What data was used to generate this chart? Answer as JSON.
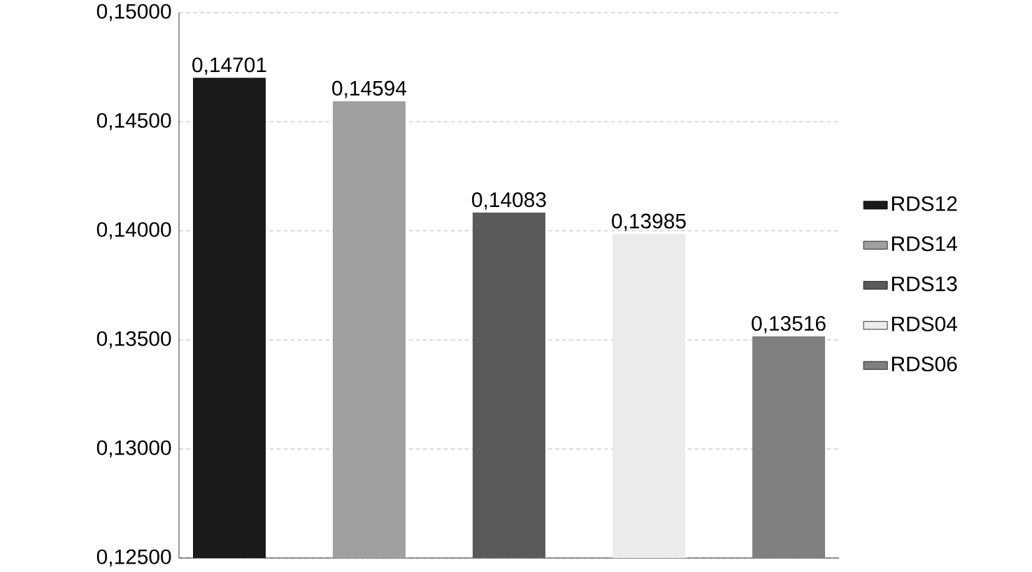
{
  "chart_data": {
    "type": "bar",
    "categories": [
      null
    ],
    "series": [
      {
        "name": "RDS12",
        "color": "#1a1a1a",
        "values": [
          0.14701
        ],
        "value_labels": [
          "0,14701"
        ]
      },
      {
        "name": "RDS14",
        "color": "#a0a0a0",
        "values": [
          0.14594
        ],
        "value_labels": [
          "0,14594"
        ]
      },
      {
        "name": "RDS13",
        "color": "#5a5a5a",
        "values": [
          0.14083
        ],
        "value_labels": [
          "0,14083"
        ]
      },
      {
        "name": "RDS04",
        "color": "#ebebeb",
        "values": [
          0.13985
        ],
        "value_labels": [
          "0,13985"
        ]
      },
      {
        "name": "RDS06",
        "color": "#808080",
        "values": [
          0.13516
        ],
        "value_labels": [
          "0,13516"
        ]
      }
    ],
    "ylim": [
      0.125,
      0.15
    ],
    "yticks": [
      {
        "value": 0.125,
        "label": "0,12500"
      },
      {
        "value": 0.13,
        "label": "0,13000"
      },
      {
        "value": 0.135,
        "label": "0,13500"
      },
      {
        "value": 0.14,
        "label": "0,14000"
      },
      {
        "value": 0.145,
        "label": "0,14500"
      },
      {
        "value": 0.15,
        "label": "0,15000"
      }
    ],
    "grid": "y",
    "legend": "right"
  }
}
